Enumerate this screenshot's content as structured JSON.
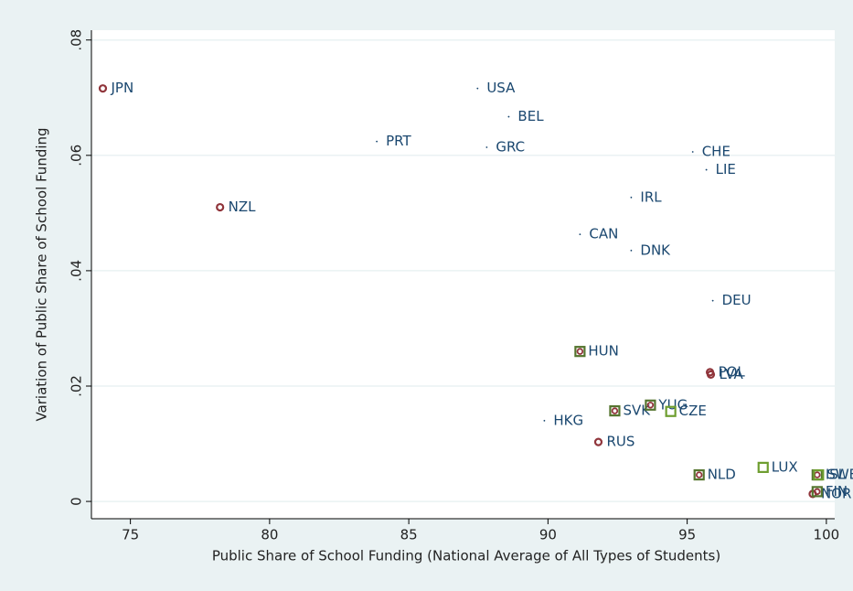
{
  "chart_data": {
    "type": "scatter",
    "xlabel": "Public Share of School Funding (National Average of All Types of Students)",
    "ylabel": "Variation of Public Share of School Funding",
    "xlim": [
      73.6,
      100.3
    ],
    "ylim": [
      -0.003,
      0.0817
    ],
    "xticks": [
      75,
      80,
      85,
      90,
      95,
      100
    ],
    "yticks": [
      0,
      {
        "value": 0.02,
        "label": ".02"
      },
      {
        "value": 0.04,
        "label": ".04"
      },
      {
        "value": 0.06,
        "label": ".06"
      },
      {
        "value": 0.08,
        "label": ".08"
      }
    ],
    "grid": true,
    "series": [
      {
        "marker": "dot",
        "color": "#1a476f",
        "labels": [
          "USA",
          "BEL",
          "PRT",
          "GRC",
          "CHE",
          "LIE",
          "IRL",
          "CAN",
          "DNK",
          "DEU",
          "HKG"
        ],
        "x": [
          87.47,
          88.59,
          83.85,
          87.8,
          95.2,
          95.69,
          92.99,
          91.15,
          92.99,
          95.92,
          89.87
        ],
        "values": [
          0.0716,
          0.0667,
          0.0624,
          0.0614,
          0.0606,
          0.0575,
          0.0527,
          0.0463,
          0.0435,
          0.0348,
          0.014
        ]
      },
      {
        "marker": "circle",
        "color": "#90353b",
        "labels": [
          "JPN",
          "NZL",
          "POL",
          "LVA",
          "RUS",
          "NOR"
        ],
        "x": [
          74.01,
          78.22,
          95.82,
          95.85,
          91.81,
          99.51
        ],
        "values": [
          0.0716,
          0.051,
          0.0224,
          0.022,
          0.0103,
          0.0013
        ]
      },
      {
        "marker": "both",
        "color": "#55752f",
        "labels": [
          "HUN",
          "SVK",
          "YUG",
          "NLD",
          "ISL",
          "FIN"
        ],
        "x": [
          91.15,
          92.4,
          93.68,
          95.43,
          99.67,
          99.67
        ],
        "values": [
          0.026,
          0.0157,
          0.0167,
          0.0046,
          0.0046,
          0.0017
        ]
      },
      {
        "marker": "square",
        "color": "#6e9e2f",
        "labels": [
          "CZE",
          "LUX",
          "SWE"
        ],
        "x": [
          94.41,
          97.73,
          99.72
        ],
        "values": [
          0.0156,
          0.0059,
          0.0046
        ]
      }
    ]
  }
}
